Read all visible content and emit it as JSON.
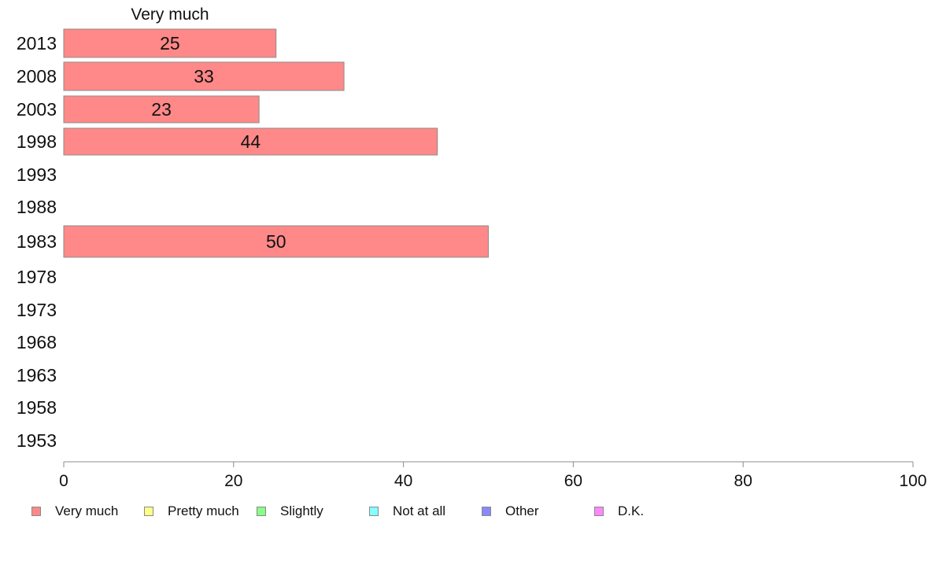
{
  "chart_data": {
    "type": "bar",
    "orientation": "horizontal",
    "stacked": true,
    "header_label": "Very much",
    "categories": [
      "2013",
      "2008",
      "2003",
      "1998",
      "1993",
      "1988",
      "1983",
      "1978",
      "1973",
      "1968",
      "1963",
      "1958",
      "1953"
    ],
    "series": [
      {
        "name": "Very much",
        "color": "#ff8888",
        "values": [
          25,
          33,
          23,
          44,
          null,
          null,
          50,
          null,
          null,
          null,
          null,
          null,
          null
        ]
      },
      {
        "name": "Pretty much",
        "color": "#ffff88",
        "values": [
          null,
          null,
          null,
          null,
          null,
          null,
          null,
          null,
          null,
          null,
          null,
          null,
          null
        ]
      },
      {
        "name": "Slightly",
        "color": "#88ff88",
        "values": [
          null,
          null,
          null,
          null,
          null,
          null,
          null,
          null,
          null,
          null,
          null,
          null,
          null
        ]
      },
      {
        "name": "Not at all",
        "color": "#88ffff",
        "values": [
          null,
          null,
          null,
          null,
          null,
          null,
          null,
          null,
          null,
          null,
          null,
          null,
          null
        ]
      },
      {
        "name": "Other",
        "color": "#8888ff",
        "values": [
          null,
          null,
          null,
          null,
          null,
          null,
          null,
          null,
          null,
          null,
          null,
          null,
          null
        ]
      },
      {
        "name": "D.K.",
        "color": "#ff88ff",
        "values": [
          null,
          null,
          null,
          null,
          null,
          null,
          null,
          null,
          null,
          null,
          null,
          null,
          null
        ]
      }
    ],
    "xlim": [
      0,
      100
    ],
    "xticks": [
      0,
      20,
      40,
      60,
      80,
      100
    ],
    "grid": false,
    "legend_position": "bottom"
  },
  "legend": {
    "items": [
      {
        "label": "Very much",
        "color": "#ff8888"
      },
      {
        "label": "Pretty much",
        "color": "#ffff88"
      },
      {
        "label": "Slightly",
        "color": "#88ff88"
      },
      {
        "label": "Not at all",
        "color": "#88ffff"
      },
      {
        "label": "Other",
        "color": "#8888ff"
      },
      {
        "label": "D.K.",
        "color": "#ff88ff"
      }
    ]
  }
}
